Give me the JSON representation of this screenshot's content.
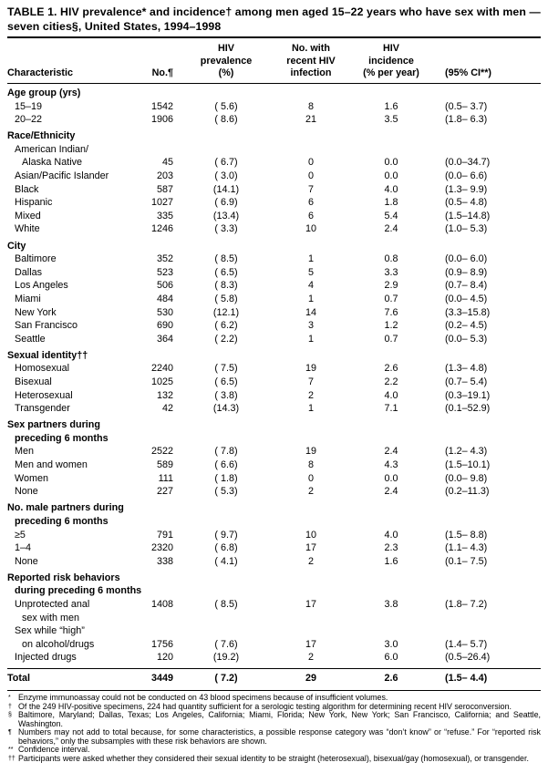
{
  "title": "TABLE 1. HIV prevalence* and incidence† among men aged 15–22 years who have sex with men — seven cities§, United States, 1994–1998",
  "table": {
    "header": {
      "characteristic": "Characteristic",
      "no": "No.¶",
      "prevalence_lines": [
        "HIV",
        "prevalence",
        "(%)"
      ],
      "recent_lines": [
        "No. with",
        "recent HIV",
        "infection"
      ],
      "incidence_lines": [
        "HIV",
        "incidence",
        "(% per year)"
      ],
      "ci": "(95% CI**)"
    },
    "rows": [
      {
        "type": "section",
        "lines": [
          "Age group (yrs)"
        ]
      },
      {
        "type": "data",
        "indent": 1,
        "lines": [
          "15–19"
        ],
        "values": [
          "1542",
          "( 5.6)",
          "8",
          "1.6",
          "(0.5– 3.7)"
        ]
      },
      {
        "type": "data",
        "indent": 1,
        "lines": [
          "20–22"
        ],
        "values": [
          "1906",
          "( 8.6)",
          "21",
          "3.5",
          "(1.8– 6.3)"
        ]
      },
      {
        "type": "section",
        "lines": [
          "Race/Ethnicity"
        ]
      },
      {
        "type": "data",
        "indent": 1,
        "lines": [
          "American Indian/",
          "Alaska Native"
        ],
        "values": [
          "45",
          "( 6.7)",
          "0",
          "0.0",
          "(0.0–34.7)"
        ],
        "values_line": 1
      },
      {
        "type": "data",
        "indent": 1,
        "lines": [
          "Asian/Pacific Islander"
        ],
        "values": [
          "203",
          "( 3.0)",
          "0",
          "0.0",
          "(0.0– 6.6)"
        ]
      },
      {
        "type": "data",
        "indent": 1,
        "lines": [
          "Black"
        ],
        "values": [
          "587",
          "(14.1)",
          "7",
          "4.0",
          "(1.3– 9.9)"
        ]
      },
      {
        "type": "data",
        "indent": 1,
        "lines": [
          "Hispanic"
        ],
        "values": [
          "1027",
          "( 6.9)",
          "6",
          "1.8",
          "(0.5– 4.8)"
        ]
      },
      {
        "type": "data",
        "indent": 1,
        "lines": [
          "Mixed"
        ],
        "values": [
          "335",
          "(13.4)",
          "6",
          "5.4",
          "(1.5–14.8)"
        ]
      },
      {
        "type": "data",
        "indent": 1,
        "lines": [
          "White"
        ],
        "values": [
          "1246",
          "( 3.3)",
          "10",
          "2.4",
          "(1.0– 5.3)"
        ]
      },
      {
        "type": "section",
        "lines": [
          "City"
        ]
      },
      {
        "type": "data",
        "indent": 1,
        "lines": [
          "Baltimore"
        ],
        "values": [
          "352",
          "( 8.5)",
          "1",
          "0.8",
          "(0.0– 6.0)"
        ]
      },
      {
        "type": "data",
        "indent": 1,
        "lines": [
          "Dallas"
        ],
        "values": [
          "523",
          "( 6.5)",
          "5",
          "3.3",
          "(0.9– 8.9)"
        ]
      },
      {
        "type": "data",
        "indent": 1,
        "lines": [
          "Los Angeles"
        ],
        "values": [
          "506",
          "( 8.3)",
          "4",
          "2.9",
          "(0.7– 8.4)"
        ]
      },
      {
        "type": "data",
        "indent": 1,
        "lines": [
          "Miami"
        ],
        "values": [
          "484",
          "( 5.8)",
          "1",
          "0.7",
          "(0.0– 4.5)"
        ]
      },
      {
        "type": "data",
        "indent": 1,
        "lines": [
          "New York"
        ],
        "values": [
          "530",
          "(12.1)",
          "14",
          "7.6",
          "(3.3–15.8)"
        ]
      },
      {
        "type": "data",
        "indent": 1,
        "lines": [
          "San Francisco"
        ],
        "values": [
          "690",
          "( 6.2)",
          "3",
          "1.2",
          "(0.2– 4.5)"
        ]
      },
      {
        "type": "data",
        "indent": 1,
        "lines": [
          "Seattle"
        ],
        "values": [
          "364",
          "( 2.2)",
          "1",
          "0.7",
          "(0.0– 5.3)"
        ]
      },
      {
        "type": "section",
        "lines": [
          "Sexual identity††"
        ]
      },
      {
        "type": "data",
        "indent": 1,
        "lines": [
          "Homosexual"
        ],
        "values": [
          "2240",
          "( 7.5)",
          "19",
          "2.6",
          "(1.3– 4.8)"
        ]
      },
      {
        "type": "data",
        "indent": 1,
        "lines": [
          "Bisexual"
        ],
        "values": [
          "1025",
          "( 6.5)",
          "7",
          "2.2",
          "(0.7– 5.4)"
        ]
      },
      {
        "type": "data",
        "indent": 1,
        "lines": [
          "Heterosexual"
        ],
        "values": [
          "132",
          "( 3.8)",
          "2",
          "4.0",
          "(0.3–19.1)"
        ]
      },
      {
        "type": "data",
        "indent": 1,
        "lines": [
          "Transgender"
        ],
        "values": [
          "42",
          "(14.3)",
          "1",
          "7.1",
          "(0.1–52.9)"
        ]
      },
      {
        "type": "section",
        "lines": [
          "Sex partners during",
          "preceding 6 months"
        ]
      },
      {
        "type": "data",
        "indent": 1,
        "lines": [
          "Men"
        ],
        "values": [
          "2522",
          "( 7.8)",
          "19",
          "2.4",
          "(1.2– 4.3)"
        ]
      },
      {
        "type": "data",
        "indent": 1,
        "lines": [
          "Men and women"
        ],
        "values": [
          "589",
          "( 6.6)",
          "8",
          "4.3",
          "(1.5–10.1)"
        ]
      },
      {
        "type": "data",
        "indent": 1,
        "lines": [
          "Women"
        ],
        "values": [
          "111",
          "( 1.8)",
          "0",
          "0.0",
          "(0.0– 9.8)"
        ]
      },
      {
        "type": "data",
        "indent": 1,
        "lines": [
          "None"
        ],
        "values": [
          "227",
          "( 5.3)",
          "2",
          "2.4",
          "(0.2–11.3)"
        ]
      },
      {
        "type": "section",
        "lines": [
          "No. male partners during",
          "preceding 6 months"
        ]
      },
      {
        "type": "data",
        "indent": 1,
        "lines": [
          "≥5"
        ],
        "values": [
          "791",
          "( 9.7)",
          "10",
          "4.0",
          "(1.5– 8.8)"
        ]
      },
      {
        "type": "data",
        "indent": 1,
        "lines": [
          "1–4"
        ],
        "values": [
          "2320",
          "( 6.8)",
          "17",
          "2.3",
          "(1.1– 4.3)"
        ]
      },
      {
        "type": "data",
        "indent": 1,
        "lines": [
          "None"
        ],
        "values": [
          "338",
          "( 4.1)",
          "2",
          "1.6",
          "(0.1– 7.5)"
        ]
      },
      {
        "type": "section",
        "lines": [
          "Reported risk behaviors",
          "during preceding 6 months"
        ]
      },
      {
        "type": "data",
        "indent": 1,
        "lines": [
          "Unprotected anal",
          "sex with men"
        ],
        "values": [
          "1408",
          "( 8.5)",
          "17",
          "3.8",
          "(1.8– 7.2)"
        ],
        "values_line": 0
      },
      {
        "type": "data",
        "indent": 1,
        "lines": [
          "Sex while “high”",
          "on alcohol/drugs"
        ],
        "values": [
          "1756",
          "( 7.6)",
          "17",
          "3.0",
          "(1.4– 5.7)"
        ],
        "values_line": 1
      },
      {
        "type": "data",
        "indent": 1,
        "lines": [
          "Injected drugs"
        ],
        "values": [
          "120",
          "(19.2)",
          "2",
          "6.0",
          "(0.5–26.4)"
        ]
      },
      {
        "type": "total",
        "lines": [
          "Total"
        ],
        "values": [
          "3449",
          "( 7.2)",
          "29",
          "2.6",
          "(1.5– 4.4)"
        ]
      }
    ]
  },
  "footnotes": [
    {
      "marker": "*",
      "text": "Enzyme immunoassay could not be conducted on 43 blood specimens because of insufficient volumes."
    },
    {
      "marker": "†",
      "text": "Of the 249 HIV-positive specimens, 224 had quantity sufficient for a serologic testing algorithm for determining recent HIV seroconversion."
    },
    {
      "marker": "§",
      "text": "Baltimore, Maryland; Dallas, Texas; Los Angeles, California; Miami, Florida; New York, New York; San Francisco, California; and Seattle, Washington."
    },
    {
      "marker": "¶",
      "text": "Numbers may not add to total because, for some characteristics, a possible response category was “don’t know” or “refuse.” For “reported risk behaviors,” only the subsamples with these risk behaviors are shown."
    },
    {
      "marker": "**",
      "text": "Confidence interval."
    },
    {
      "marker": "††",
      "text": "Participants were asked whether they considered their sexual identity to be straight (heterosexual), bisexual/gay (homosexual), or transgender."
    }
  ]
}
